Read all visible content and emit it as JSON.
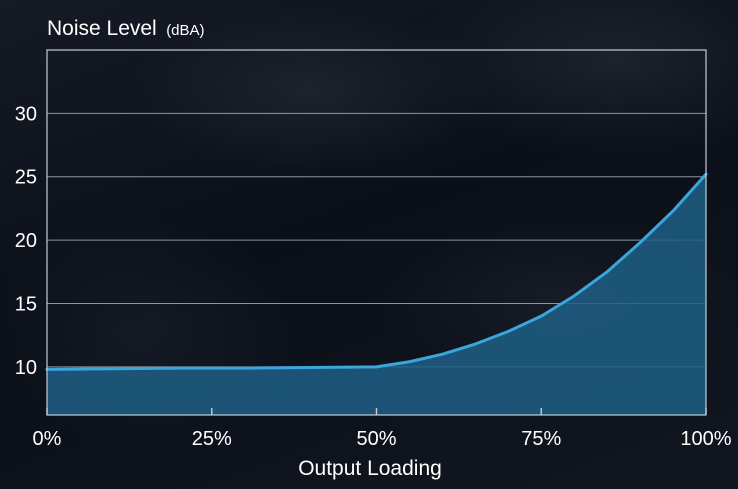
{
  "chart_data": {
    "type": "area",
    "title": "Noise Level",
    "title_unit": "(dBA)",
    "xlabel": "Output Loading",
    "ylabel": "",
    "x_ticks": [
      "0%",
      "25%",
      "50%",
      "75%",
      "100%"
    ],
    "y_ticks": [
      "10",
      "15",
      "20",
      "25",
      "30"
    ],
    "xlim": [
      0,
      100
    ],
    "ylim": [
      6.2,
      35.0
    ],
    "grid": "horizontal",
    "series": [
      {
        "x": [
          0,
          10,
          20,
          30,
          40,
          50,
          55,
          60,
          65,
          70,
          75,
          80,
          85,
          90,
          95,
          100
        ],
        "values": [
          9.8,
          9.85,
          9.9,
          9.9,
          9.95,
          10.0,
          10.4,
          11.0,
          11.8,
          12.8,
          14.0,
          15.6,
          17.5,
          19.8,
          22.3,
          25.2
        ]
      }
    ],
    "colors": {
      "line": "#3aa6dc",
      "fill": "#1f5f86",
      "grid": "#b9c1cc",
      "frame": "#c4ccd6",
      "text": "#ffffff"
    }
  }
}
